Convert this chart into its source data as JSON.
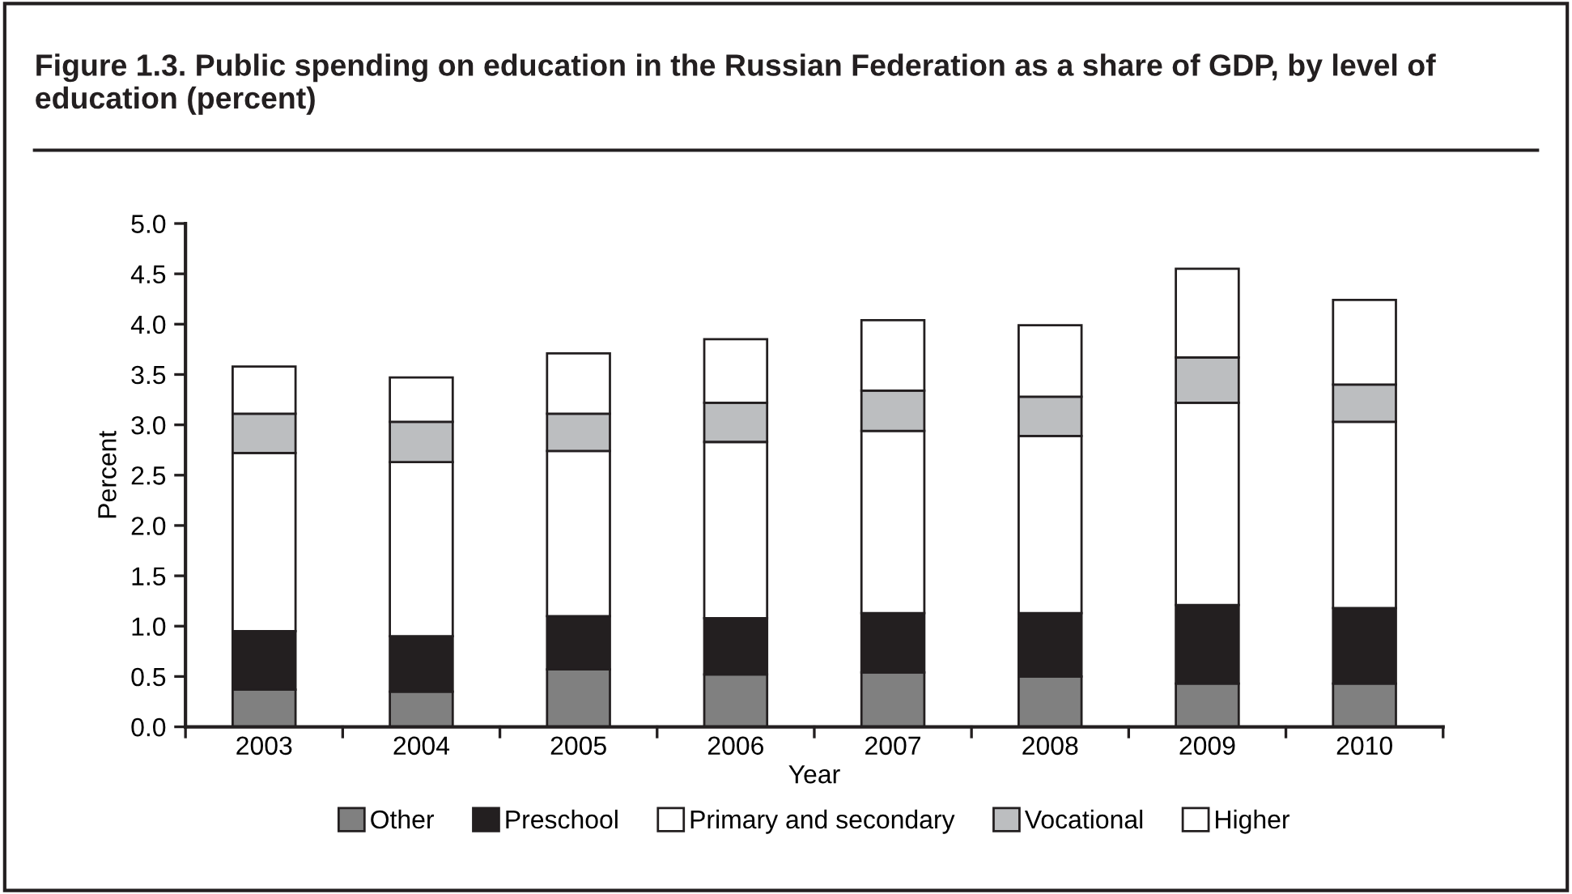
{
  "chart_data": {
    "type": "bar",
    "stacked": true,
    "title": "Figure 1.3. Public spending on education in the Russian Federation as a share of GDP, by level of education (percent)",
    "xlabel": "Year",
    "ylabel": "Percent",
    "categories": [
      "2003",
      "2004",
      "2005",
      "2006",
      "2007",
      "2008",
      "2009",
      "2010"
    ],
    "series": [
      {
        "name": "Other",
        "color": "#808080",
        "values": [
          0.37,
          0.35,
          0.57,
          0.52,
          0.54,
          0.5,
          0.43,
          0.43
        ]
      },
      {
        "name": "Preschool",
        "color": "#231f20",
        "values": [
          0.58,
          0.55,
          0.53,
          0.56,
          0.59,
          0.63,
          0.78,
          0.75
        ]
      },
      {
        "name": "Primary and secondary",
        "color": "#ffffff",
        "values": [
          1.77,
          1.73,
          1.64,
          1.75,
          1.81,
          1.76,
          2.01,
          1.85
        ]
      },
      {
        "name": "Vocational",
        "color": "#bcbec0",
        "values": [
          0.39,
          0.4,
          0.37,
          0.39,
          0.4,
          0.39,
          0.45,
          0.37
        ]
      },
      {
        "name": "Higher",
        "color": "#ffffff",
        "values": [
          0.47,
          0.44,
          0.6,
          0.63,
          0.7,
          0.71,
          0.88,
          0.84
        ]
      }
    ],
    "ylim": [
      0,
      5
    ],
    "yticks": [
      {
        "value": 0,
        "label": "0.0"
      },
      0.5,
      {
        "value": 1,
        "label": "1.0"
      },
      1.5,
      {
        "value": 2,
        "label": "2.0"
      },
      2.5,
      {
        "value": 3,
        "label": "3.0"
      },
      3.5,
      {
        "value": 4,
        "label": "4.0"
      },
      4.5,
      {
        "value": 5,
        "label": "5.0"
      }
    ],
    "grid": false,
    "legend": "bottom"
  }
}
